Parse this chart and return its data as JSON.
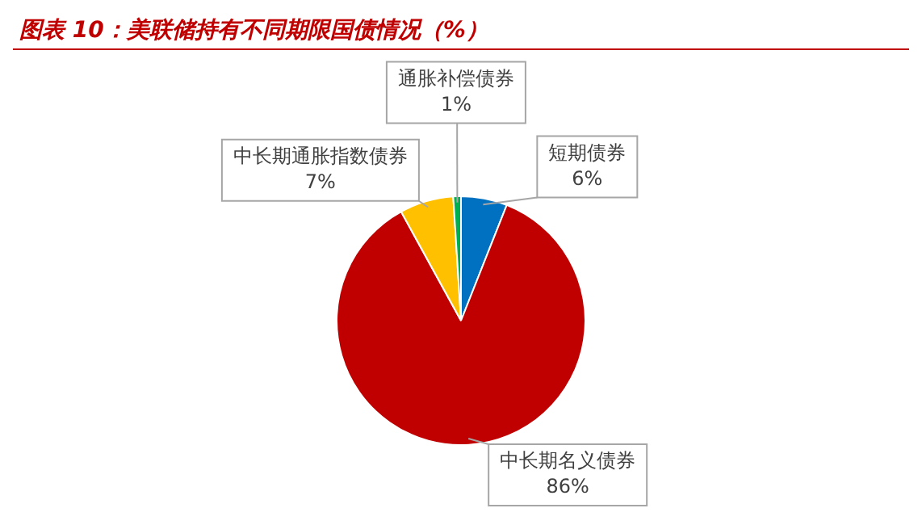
{
  "chart_data": {
    "type": "pie",
    "title": "图表 10：美联储持有不同期限国债情况（%）",
    "categories": [
      "短期债券",
      "中长期名义债券",
      "中长期通胀指数债券",
      "通胀补偿债券"
    ],
    "values": [
      6,
      86,
      7,
      1
    ],
    "value_labels": [
      "6%",
      "86%",
      "7%",
      "1%"
    ],
    "colors": [
      "#0070c0",
      "#c00000",
      "#ffc000",
      "#00b050"
    ],
    "legend": false
  }
}
